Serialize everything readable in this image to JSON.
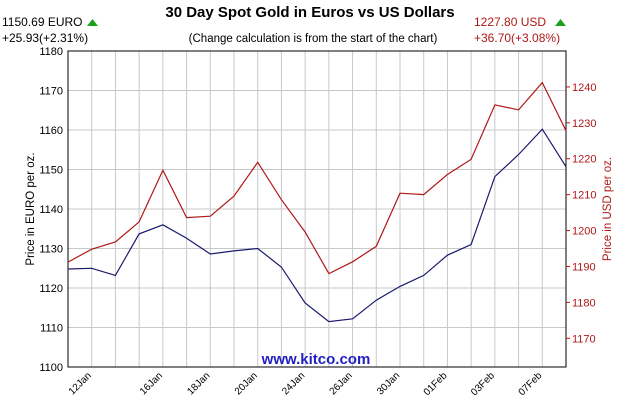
{
  "chart_data": {
    "type": "line",
    "title": "30 Day Spot Gold in Euros vs US Dollars",
    "subtitle": "(Change calculation is from the start of the chart)",
    "watermark": "www.kitco.com",
    "euro_quote": {
      "price": "1150.69 EURO",
      "change": "+25.93(+2.31%)"
    },
    "usd_quote": {
      "price": "1227.80 USD",
      "change": "+36.70(+3.08%)"
    },
    "y_left_label": "Price in EURO per oz.",
    "y_right_label": "Price in USD per oz.",
    "y_left_range": [
      1100,
      1180
    ],
    "y_left_ticks": [
      1100,
      1110,
      1120,
      1130,
      1140,
      1150,
      1160,
      1170,
      1180
    ],
    "y_right_range": [
      1162,
      1250
    ],
    "y_right_ticks": [
      1170,
      1180,
      1190,
      1200,
      1210,
      1220,
      1230,
      1240
    ],
    "x_tick_labels": [
      "12Jan",
      "16Jan",
      "18Jan",
      "20Jan",
      "24Jan",
      "26Jan",
      "30Jan",
      "01Feb",
      "03Feb",
      "07Feb"
    ],
    "grid": true,
    "colors": {
      "euro": "#1a1a6e",
      "usd": "#b01818",
      "grid": "#c8c8c8",
      "up_arrow": "#1aa31a",
      "watermark": "#1f1fc4"
    },
    "x_index_count": 21,
    "x_tick_index": [
      1,
      4,
      6,
      8,
      10,
      12,
      14,
      16,
      18,
      20
    ],
    "series": [
      {
        "name": "EURO",
        "axis": "left",
        "values": [
          1124.8,
          1125.0,
          1123.2,
          1133.7,
          1136.0,
          1132.6,
          1128.6,
          1129.4,
          1130.0,
          1125.3,
          1116.2,
          1111.5,
          1112.2,
          1116.9,
          1120.4,
          1123.2,
          1128.3,
          1131.0,
          1148.2,
          1153.8,
          1160.2,
          1150.7
        ]
      },
      {
        "name": "USD",
        "axis": "right",
        "values": [
          1191.2,
          1194.8,
          1196.8,
          1202.4,
          1216.8,
          1203.6,
          1204.0,
          1209.6,
          1219.0,
          1208.6,
          1199.6,
          1188.0,
          1191.3,
          1195.6,
          1210.4,
          1210.0,
          1215.6,
          1219.8,
          1235.0,
          1233.6,
          1241.2,
          1227.8
        ]
      }
    ]
  }
}
